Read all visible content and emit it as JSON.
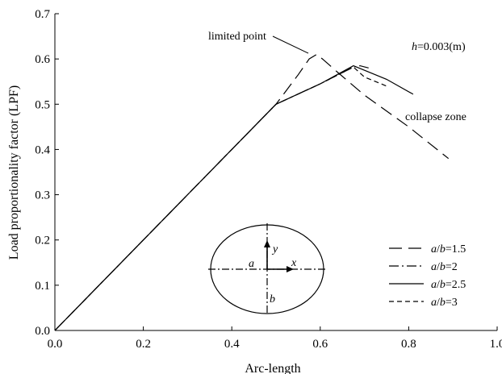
{
  "chart_data": {
    "type": "line",
    "xlabel": "Arc-length",
    "ylabel": "Load proportionality factor (LPF)",
    "xlim": [
      0,
      1.0
    ],
    "ylim": [
      0,
      0.7
    ],
    "x_ticks": [
      "0.0",
      "0.2",
      "0.4",
      "0.6",
      "0.8",
      "1.0"
    ],
    "y_ticks": [
      "0.0",
      "0.1",
      "0.2",
      "0.3",
      "0.4",
      "0.5",
      "0.6",
      "0.7"
    ],
    "grid": false,
    "legend_placement": "bottom-right",
    "series": [
      {
        "name": "a/b=1.5",
        "dash": "long-dash",
        "points": [
          [
            0,
            0
          ],
          [
            0.5,
            0.5
          ],
          [
            0.55,
            0.565
          ],
          [
            0.575,
            0.6
          ],
          [
            0.592,
            0.61
          ],
          [
            0.605,
            0.6
          ],
          [
            0.64,
            0.57
          ],
          [
            0.7,
            0.52
          ],
          [
            0.8,
            0.45
          ],
          [
            0.89,
            0.38
          ]
        ]
      },
      {
        "name": "a/b=2",
        "dash": "dash-dot",
        "points": [
          [
            0,
            0
          ],
          [
            0.5,
            0.5
          ],
          [
            0.6,
            0.545
          ],
          [
            0.675,
            0.582
          ],
          [
            0.69,
            0.585
          ],
          [
            0.71,
            0.58
          ]
        ]
      },
      {
        "name": "a/b=2.5",
        "dash": "solid",
        "points": [
          [
            0,
            0
          ],
          [
            0.5,
            0.5
          ],
          [
            0.6,
            0.545
          ],
          [
            0.675,
            0.585
          ],
          [
            0.75,
            0.555
          ],
          [
            0.81,
            0.522
          ]
        ]
      },
      {
        "name": "a/b=3",
        "dash": "short-dash",
        "points": [
          [
            0,
            0
          ],
          [
            0.5,
            0.5
          ],
          [
            0.6,
            0.545
          ],
          [
            0.675,
            0.582
          ],
          [
            0.7,
            0.56
          ],
          [
            0.75,
            0.54
          ]
        ]
      }
    ],
    "legend": [
      {
        "prefix": "a",
        "slash": "/",
        "suffix": "b",
        "value": "=1.5",
        "dash": "long-dash"
      },
      {
        "prefix": "a",
        "slash": "/",
        "suffix": "b",
        "value": "=2",
        "dash": "dash-dot"
      },
      {
        "prefix": "a",
        "slash": "/",
        "suffix": "b",
        "value": "=2.5",
        "dash": "solid"
      },
      {
        "prefix": "a",
        "slash": "/",
        "suffix": "b",
        "value": "=3",
        "dash": "short-dash"
      }
    ],
    "annotations": {
      "limited_point": "limited point",
      "collapse_zone": "collapse zone",
      "thickness_var": "h",
      "thickness_value": "=0.003(m)"
    },
    "inset": {
      "y_label": "y",
      "x_label": "x",
      "a_label": "a",
      "b_label": "b"
    }
  }
}
